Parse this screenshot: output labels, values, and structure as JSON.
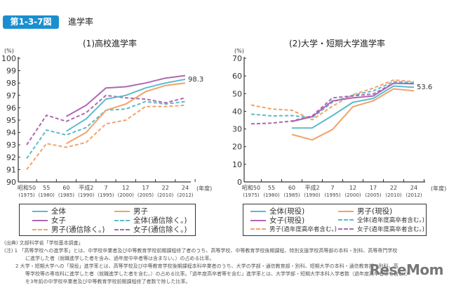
{
  "figure": {
    "badge": "第1-3-7図",
    "title": "進学率"
  },
  "colors": {
    "total": "#5bbccc",
    "male": "#f0a36c",
    "female": "#b067b0",
    "badge": "#1a8fd0"
  },
  "chart_data": [
    {
      "type": "line",
      "title": "(1)高校進学率",
      "ylabel": "(%)",
      "xlabel": "(年度)",
      "ylim": [
        90,
        100
      ],
      "yticks": [
        "90",
        "91",
        "92",
        "93",
        "94",
        "95",
        "96",
        "97",
        "98",
        "99",
        "100"
      ],
      "categories": [
        "昭和50",
        "55",
        "60",
        "平成2",
        "7",
        "12",
        "17",
        "22",
        "24"
      ],
      "categories_sub": [
        "(1975)",
        "(1980)",
        "(1985)",
        "(1990)",
        "(1995)",
        "(2000)",
        "(2005)",
        "(2010)",
        "(2012)"
      ],
      "annotation": "98.3",
      "grid": false,
      "series": [
        {
          "name": "全体",
          "style": "solid",
          "color": "total",
          "values": [
            null,
            null,
            94.1,
            95.1,
            96.7,
            97.0,
            97.6,
            98.0,
            98.3
          ]
        },
        {
          "name": "男子",
          "style": "solid",
          "color": "male",
          "values": [
            null,
            null,
            93.1,
            94.0,
            95.8,
            96.3,
            97.3,
            97.8,
            98.0
          ]
        },
        {
          "name": "女子",
          "style": "solid",
          "color": "female",
          "values": [
            null,
            null,
            95.3,
            96.2,
            97.6,
            97.7,
            98.0,
            98.4,
            98.6
          ]
        },
        {
          "name": "全体(通信除く。)",
          "style": "dashed",
          "color": "total",
          "values": [
            91.9,
            94.2,
            93.8,
            94.4,
            95.8,
            95.9,
            96.5,
            96.3,
            96.5
          ]
        },
        {
          "name": "男子(通信除く。)",
          "style": "dashed",
          "color": "male",
          "values": [
            91.0,
            93.1,
            92.8,
            93.2,
            94.7,
            95.0,
            96.1,
            96.1,
            96.2
          ]
        },
        {
          "name": "女子(通信除く。)",
          "style": "dashed",
          "color": "female",
          "values": [
            93.0,
            95.4,
            94.9,
            95.6,
            97.0,
            96.8,
            96.7,
            96.4,
            96.8
          ]
        }
      ]
    },
    {
      "type": "line",
      "title": "(2)大学・短期大学進学率",
      "ylabel": "(%)",
      "xlabel": "(年度)",
      "ylim": [
        0,
        70
      ],
      "yticks": [
        "0",
        "10",
        "20",
        "30",
        "40",
        "50",
        "60",
        "70"
      ],
      "categories": [
        "昭和50",
        "55",
        "60",
        "平成2",
        "7",
        "12",
        "17",
        "22",
        "24"
      ],
      "categories_sub": [
        "(1975)",
        "(1980)",
        "(1985)",
        "(1990)",
        "(1995)",
        "(2000)",
        "(2005)",
        "(2010)",
        "(2012)"
      ],
      "annotation": "53.6",
      "grid": false,
      "series": [
        {
          "name": "全体(現役)",
          "style": "solid",
          "color": "total",
          "values": [
            null,
            null,
            30.5,
            30.6,
            37.6,
            45.1,
            47.3,
            54.3,
            53.6
          ]
        },
        {
          "name": "男子(現役)",
          "style": "solid",
          "color": "male",
          "values": [
            null,
            null,
            26.9,
            23.8,
            29.7,
            42.6,
            45.9,
            52.7,
            51.6
          ]
        },
        {
          "name": "女子(現役)",
          "style": "solid",
          "color": "female",
          "values": [
            null,
            null,
            34.2,
            37.0,
            45.9,
            47.6,
            48.7,
            55.9,
            55.6
          ]
        },
        {
          "name": "全体(過年度高卒者含む。)",
          "style": "dashed",
          "color": "total",
          "values": [
            38.4,
            37.4,
            37.6,
            36.3,
            45.2,
            49.1,
            51.5,
            56.8,
            56.2
          ]
        },
        {
          "name": "男子(過年度高卒者含む。)",
          "style": "dashed",
          "color": "male",
          "values": [
            43.6,
            41.3,
            40.6,
            35.2,
            42.9,
            49.4,
            53.1,
            57.7,
            56.8
          ]
        },
        {
          "name": "女子(過年度高卒者含む。)",
          "style": "dashed",
          "color": "female",
          "values": [
            32.9,
            33.3,
            34.5,
            37.4,
            47.6,
            48.7,
            49.8,
            55.9,
            55.6
          ]
        }
      ]
    }
  ],
  "notes": {
    "source": "(出典) 文部科学省「学校基本調査」",
    "note1a": "(注) 1 「高等学校への進学率」とは、中学校卒業者及び中等教育学校前期課程修了者のうち、高等学校、中等教育学校後期課程、特別支援学校高等部の本科・別科、高等専門学校",
    "note1b": "に進学した者（就職進学した者を含み、過年度中卒者等は含まない。）の占める比率。",
    "note2a": "2 大学・短期大学への「現役」進学率とは、高等学校及び中等教育学校後期課程本科卒業者のうち、大学の学部・通信教育部・別科、短期大学の本科・通信教育部・別科、高",
    "note2b": "等学校等の専攻科に進学した者（就職進学した者を含む。）の占める比率。「過年度高卒者等を含む」進学率とは、大学学部・短期大学本科入学者数（過年度高卒者等を含む。）",
    "note2c": "を3年前の中学校卒業者及び中等教育学校前期課程修了者数で除した比率。"
  },
  "watermark": "ReseMom"
}
